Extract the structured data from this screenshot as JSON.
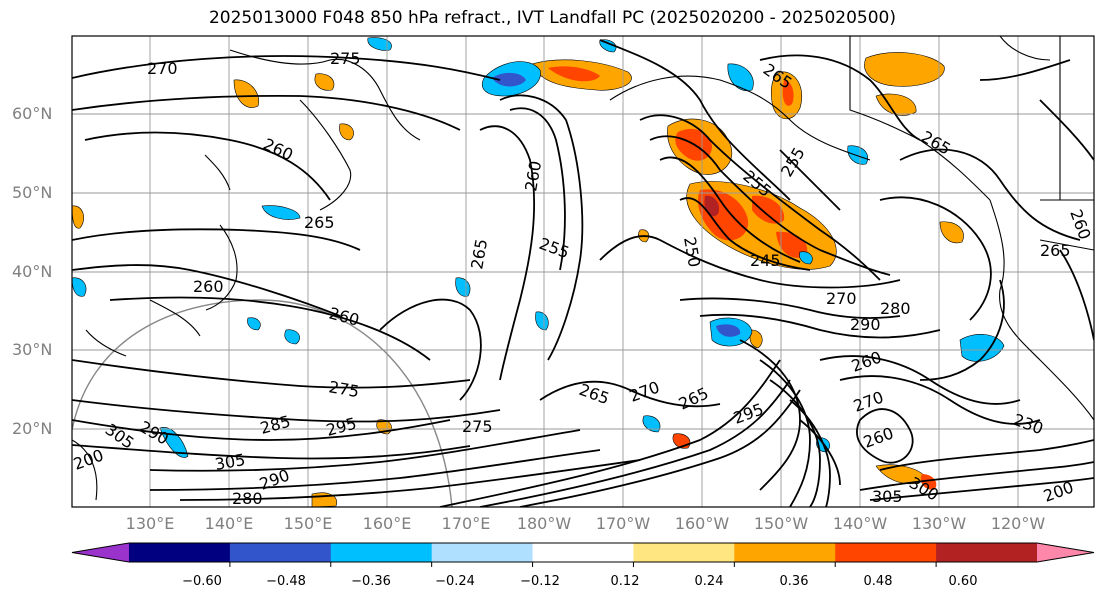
{
  "title": "2025013000 F048 850 hPa refract., IVT Landfall PC (2025020200 - 2025020500)",
  "map": {
    "lat_labels": [
      "60°N",
      "50°N",
      "40°N",
      "30°N",
      "20°N"
    ],
    "lon_labels": [
      "130°E",
      "140°E",
      "150°E",
      "160°E",
      "170°E",
      "180°W",
      "170°W",
      "160°W",
      "150°W",
      "140°W",
      "130°W",
      "120°W"
    ],
    "contour_labels": [
      "270",
      "275",
      "260",
      "265",
      "260",
      "260",
      "260",
      "265",
      "255",
      "265",
      "250",
      "255",
      "245",
      "255",
      "265",
      "270",
      "280",
      "290",
      "275",
      "285",
      "295",
      "305",
      "275",
      "265",
      "270",
      "265",
      "295",
      "260",
      "230",
      "305",
      "300",
      "290",
      "280",
      "200",
      "290",
      "305",
      "270",
      "260",
      "200",
      "265",
      "260"
    ]
  },
  "colorbar": {
    "colors": [
      "#9933cc",
      "#000080",
      "#3355cc",
      "#00bfff",
      "#b0e0ff",
      "#ffffff",
      "#ffe680",
      "#ffa500",
      "#ff4500",
      "#b22222",
      "#ff88aa"
    ],
    "ticks": [
      "−0.60",
      "−0.48",
      "−0.36",
      "−0.24",
      "−0.12",
      "0.12",
      "0.24",
      "0.36",
      "0.48",
      "0.60"
    ]
  }
}
